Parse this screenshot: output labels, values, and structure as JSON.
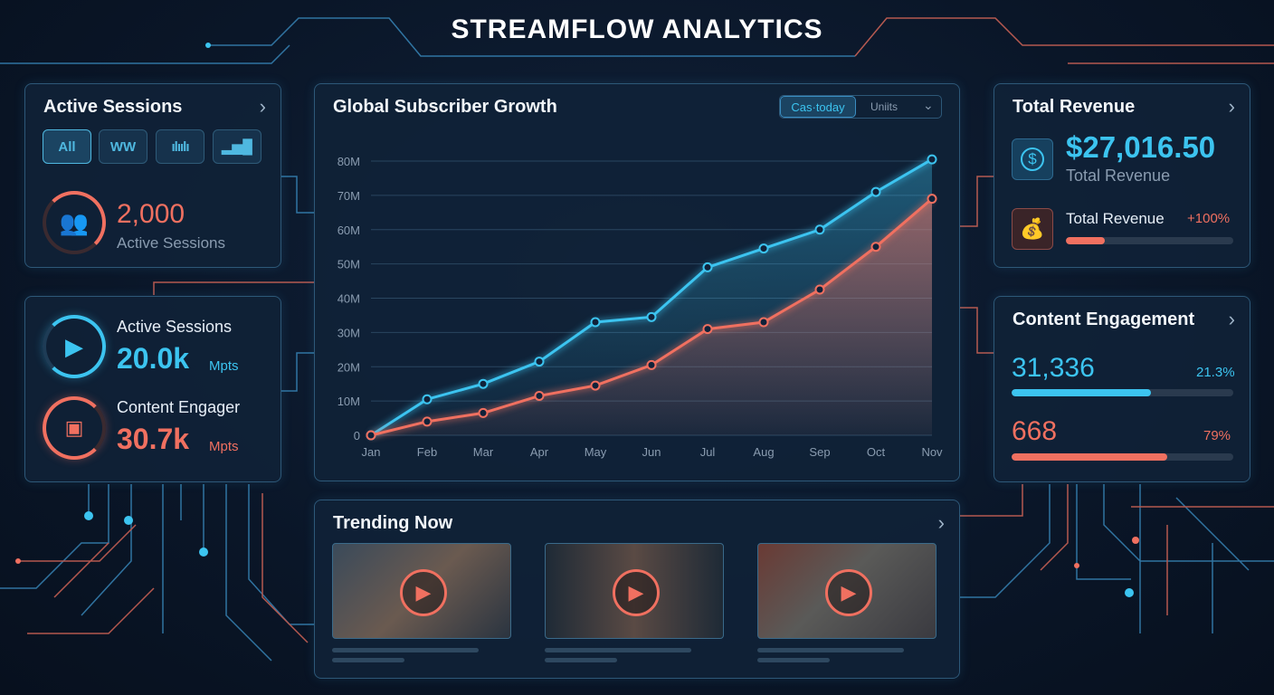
{
  "title": "STREAMFLOW ANALYTICS",
  "active_sessions": {
    "title": "Active Sessions",
    "filters": [
      "All",
      "WW",
      "waveform",
      "bars"
    ],
    "value": "2,000",
    "label": "Active Sessions"
  },
  "mini": {
    "a_label": "Active Sessions",
    "a_value": "20.0k",
    "a_unit": "Mpts",
    "a_progress": 0.8,
    "b_label": "Content Engager",
    "b_value": "30.7k",
    "b_unit": "Mpts",
    "b_progress": 0.75
  },
  "chart_header": {
    "title": "Global Subscriber Growth",
    "toggle_active": "Cas·today",
    "toggle_other": "Uniits"
  },
  "revenue": {
    "title": "Total Revenue",
    "value": "$27,016.50",
    "label": "Total Revenue",
    "sub_label": "Total Revenue",
    "sub_pct": "+100%",
    "sub_progress": 0.23
  },
  "engagement": {
    "title": "Content Engagement",
    "a_value": "31,336",
    "a_pct": "21.3%",
    "a_progress": 0.63,
    "b_value": "668",
    "b_pct": "79%",
    "b_progress": 0.7
  },
  "trending": {
    "title": "Trending Now"
  },
  "colors": {
    "cyan": "#3cc4f0",
    "red": "#f07060"
  },
  "chart_data": {
    "type": "line",
    "title": "Global Subscriber Growth",
    "categories": [
      "Jan",
      "Feb",
      "Mar",
      "Apr",
      "May",
      "Jun",
      "Jul",
      "Aug",
      "Sep",
      "Oct",
      "Nov"
    ],
    "yticks": [
      "0",
      "10M",
      "20M",
      "30M",
      "40M",
      "50M",
      "60M",
      "70M",
      "80M"
    ],
    "ylim": [
      0,
      80
    ],
    "series": [
      {
        "name": "cyan",
        "values": [
          0,
          10.5,
          15,
          21.5,
          33,
          34.5,
          49,
          54.5,
          60,
          71,
          80.5
        ]
      },
      {
        "name": "red",
        "values": [
          0,
          4,
          6.5,
          11.5,
          14.5,
          20.5,
          31,
          33,
          42.5,
          55,
          69
        ]
      }
    ]
  }
}
